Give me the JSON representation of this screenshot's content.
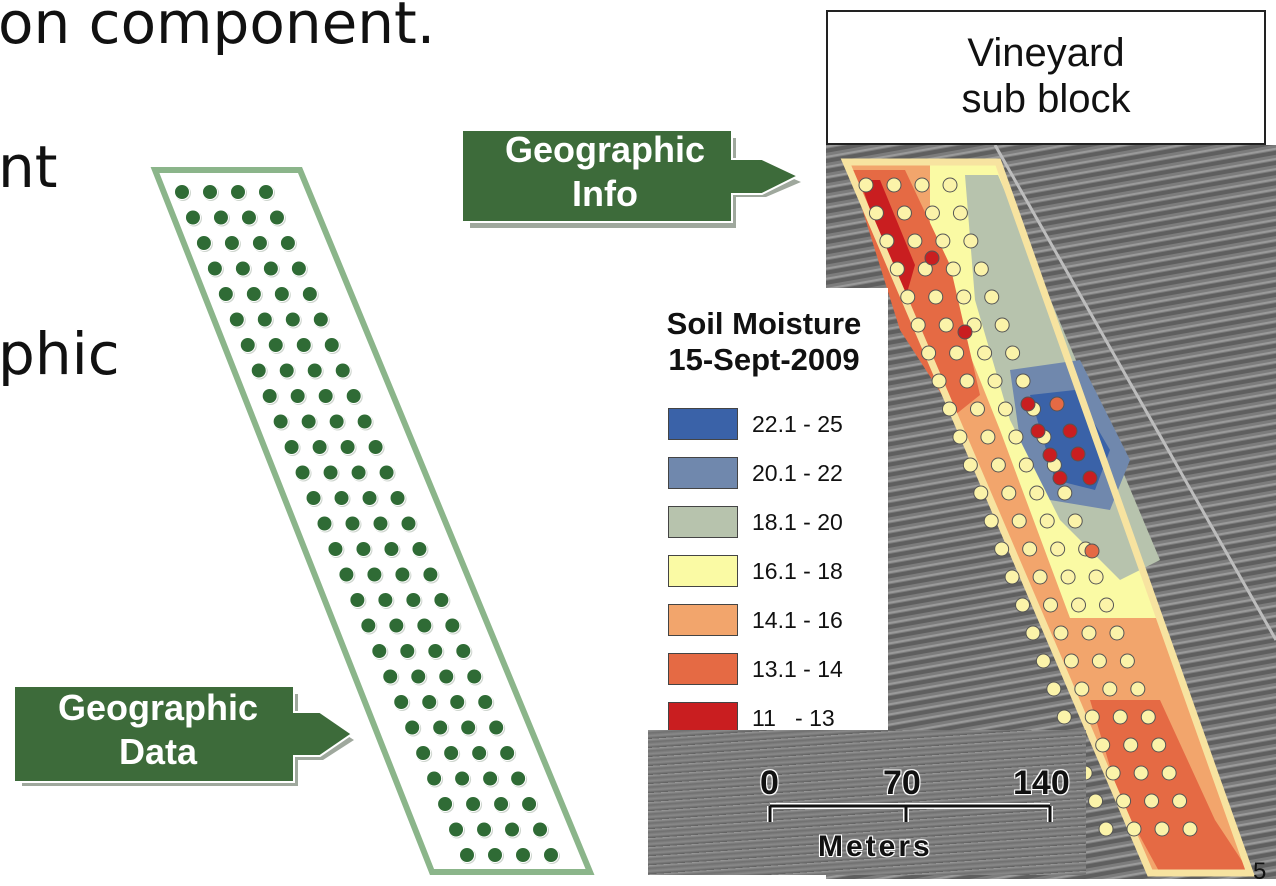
{
  "slide": {
    "text_fragments": [
      "on component.",
      "nt",
      "phic"
    ],
    "page_number": "5"
  },
  "labels": {
    "geographic_info": [
      "Geographic",
      "Info"
    ],
    "geographic_data": [
      "Geographic",
      "Data"
    ],
    "callout": [
      "Vineyard",
      "sub block"
    ]
  },
  "legend": {
    "title": [
      "Soil Moisture",
      "15-Sept-2009"
    ],
    "classes": [
      {
        "label": "22.1 - 25",
        "color": "#3a62a8"
      },
      {
        "label": "20.1 - 22",
        "color": "#7088ad"
      },
      {
        "label": "18.1 - 20",
        "color": "#b7c3ad"
      },
      {
        "label": "16.1 - 18",
        "color": "#fafaa4"
      },
      {
        "label": "14.1 - 16",
        "color": "#f2a56c"
      },
      {
        "label": "13.1 - 14",
        "color": "#e56a44"
      },
      {
        "label": "11   - 13",
        "color": "#c91e20"
      }
    ]
  },
  "scale_bar": {
    "ticks": [
      "0",
      "70",
      "140"
    ],
    "unit": "Meters"
  },
  "colors": {
    "arrow_green": "#3d6b3a",
    "outline_green": "#8bb58a",
    "dot_green": "#2f6b35",
    "boundary_yellow": "#f7e3a0"
  }
}
